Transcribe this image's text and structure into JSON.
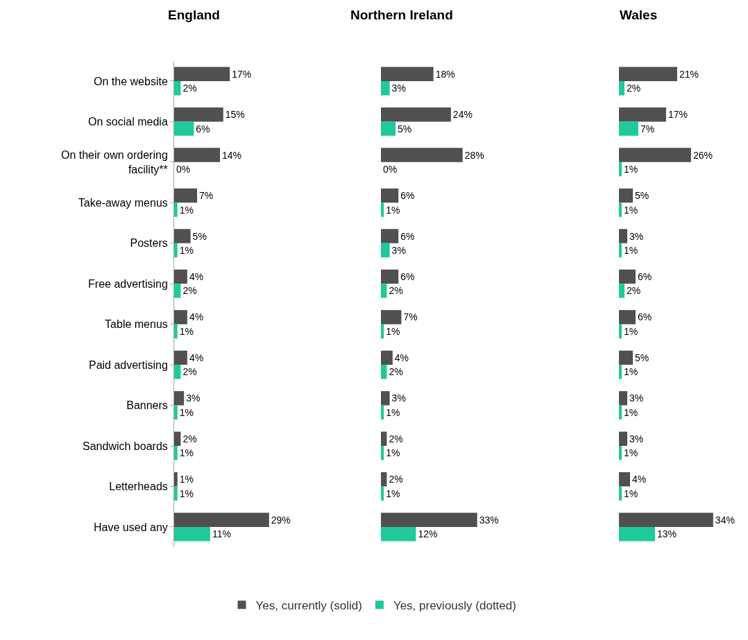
{
  "chart_data": [
    {
      "type": "bar",
      "orientation": "horizontal",
      "title": "England",
      "tick_labels": "y",
      "legend": "bottom",
      "categories": [
        "On the website",
        "On social media",
        "On their own ordering\nfacility**",
        "Take-away menus",
        "Posters",
        "Free advertising",
        "Table menus",
        "Paid advertising",
        "Banners",
        "Sandwich boards",
        "Letterheads",
        "Have used any"
      ],
      "series": [
        {
          "name": "Yes, currently (solid)",
          "color": "#505050",
          "values": [
            17,
            15,
            14,
            7,
            5,
            4,
            4,
            4,
            3,
            2,
            1,
            29
          ],
          "value_labels": [
            "17%",
            "15%",
            "14%",
            "7%",
            "5%",
            "4%",
            "4%",
            "4%",
            "3%",
            "2%",
            "1%",
            "29%"
          ]
        },
        {
          "name": "Yes, previously (dotted)",
          "color": "#1fc99b",
          "values": [
            2,
            6,
            0,
            1,
            1,
            2,
            1,
            2,
            1,
            1,
            1,
            11
          ],
          "value_labels": [
            "2%",
            "6%",
            "0%",
            "1%",
            "1%",
            "2%",
            "1%",
            "2%",
            "1%",
            "1%",
            "1%",
            "11%"
          ]
        }
      ]
    },
    {
      "type": "bar",
      "orientation": "horizontal",
      "title": "Northern Ireland",
      "tick_labels": false,
      "legend": "bottom",
      "categories": [
        null,
        null,
        null,
        null,
        null,
        null,
        null,
        null,
        null,
        null,
        null,
        null
      ],
      "series": [
        {
          "name": "Yes, currently (solid)",
          "color": "#505050",
          "values": [
            18,
            24,
            28,
            6,
            6,
            6,
            7,
            4,
            3,
            2,
            2,
            33
          ],
          "value_labels": [
            "18%",
            "24%",
            "28%",
            "6%",
            "6%",
            "6%",
            "7%",
            "4%",
            "3%",
            "2%",
            "2%",
            "33%"
          ]
        },
        {
          "name": "Yes, previously (dotted)",
          "color": "#1fc99b",
          "values": [
            3,
            5,
            0,
            1,
            3,
            2,
            1,
            2,
            1,
            1,
            1,
            12
          ],
          "value_labels": [
            "3%",
            "5%",
            "0%",
            "1%",
            "3%",
            "2%",
            "1%",
            "2%",
            "1%",
            "1%",
            "1%",
            "12%"
          ]
        }
      ]
    },
    {
      "type": "bar",
      "orientation": "horizontal",
      "title": "Wales",
      "tick_labels": false,
      "legend": "bottom",
      "categories": [
        null,
        null,
        null,
        null,
        null,
        null,
        null,
        null,
        null,
        null,
        null,
        null
      ],
      "series": [
        {
          "name": "Yes, currently (solid)",
          "color": "#505050",
          "values": [
            21,
            17,
            26,
            5,
            3,
            6,
            6,
            5,
            3,
            3,
            4,
            34
          ],
          "value_labels": [
            "21%",
            "17%",
            "26%",
            "5%",
            "3%",
            "6%",
            "6%",
            "5%",
            "3%",
            "3%",
            "4%",
            "34%"
          ]
        },
        {
          "name": "Yes, previously (dotted)",
          "color": "#1fc99b",
          "values": [
            2,
            7,
            1,
            1,
            1,
            2,
            1,
            1,
            1,
            1,
            1,
            13
          ],
          "value_labels": [
            "2%",
            "7%",
            "1%",
            "1%",
            "1%",
            "2%",
            "1%",
            "1%",
            "1%",
            "1%",
            "1%",
            "13%"
          ]
        }
      ]
    }
  ]
}
